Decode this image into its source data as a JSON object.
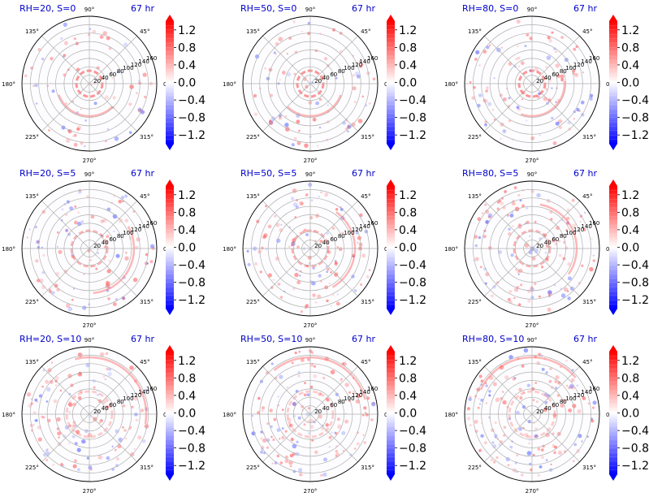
{
  "chart_data": {
    "type": "heatmap",
    "subtype": "polar",
    "colormap": "bwr",
    "time_label": "67 hr",
    "radial_ticks": [
      "20",
      "40",
      "60",
      "80",
      "100",
      "120",
      "140",
      "160"
    ],
    "radial_max": 160,
    "angle_ticks": [
      "0°",
      "45°",
      "90°",
      "135°",
      "180°",
      "225°",
      "270°",
      "315°"
    ],
    "colorbar_ticks": [
      "1.2",
      "0.8",
      "0.4",
      "0.0",
      "−0.4",
      "−0.8",
      "−1.2"
    ],
    "colorbar_values": [
      1.2,
      0.8,
      0.4,
      0.0,
      -0.4,
      -0.8,
      -1.2
    ],
    "colorbar_range": [
      -1.4,
      1.4
    ],
    "grid": true,
    "title_color": "#0000cc",
    "panels": [
      {
        "label": "RH=20, S=0",
        "rh": 20,
        "s": 0
      },
      {
        "label": "RH=50, S=0",
        "rh": 50,
        "s": 0
      },
      {
        "label": "RH=80, S=0",
        "rh": 80,
        "s": 0
      },
      {
        "label": "RH=20, S=5",
        "rh": 20,
        "s": 5
      },
      {
        "label": "RH=50, S=5",
        "rh": 50,
        "s": 5
      },
      {
        "label": "RH=80, S=5",
        "rh": 80,
        "s": 5
      },
      {
        "label": "RH=20, S=10",
        "rh": 20,
        "s": 10
      },
      {
        "label": "RH=50, S=10",
        "rh": 50,
        "s": 10
      },
      {
        "label": "RH=80, S=10",
        "rh": 80,
        "s": 10
      }
    ]
  }
}
